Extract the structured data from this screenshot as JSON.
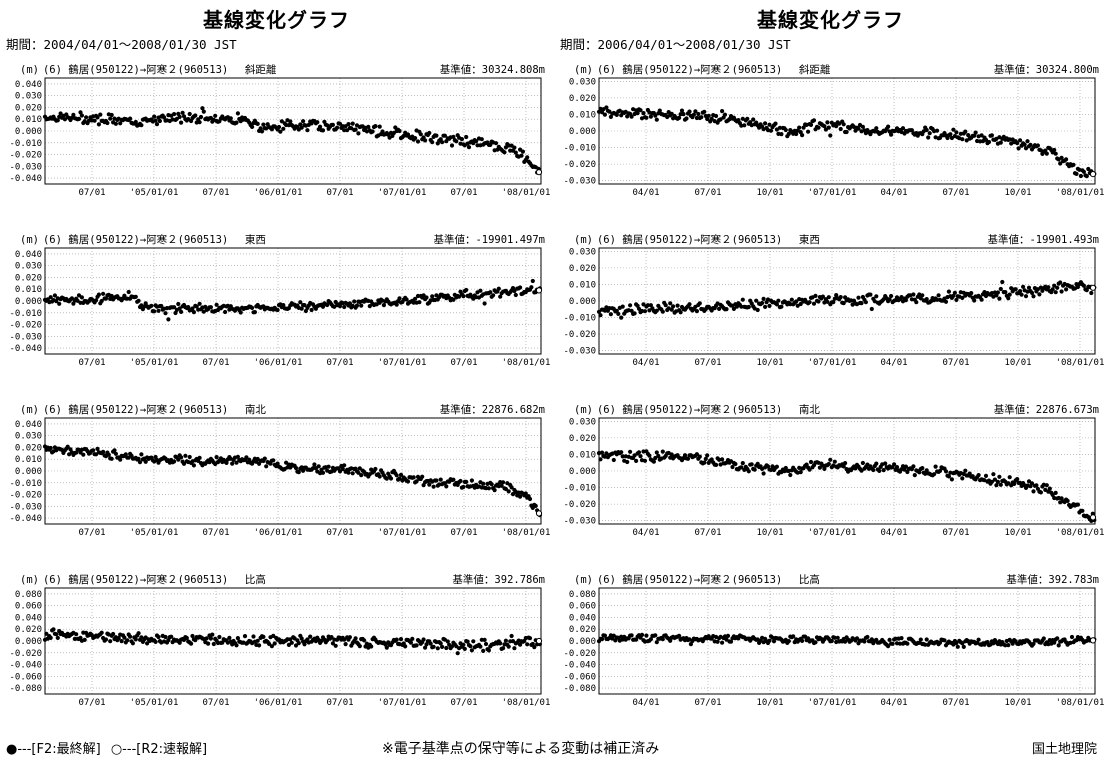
{
  "page": {
    "legend_final": "●---[F2:最終解]",
    "legend_quick": "○---[R2:速報解]",
    "note": "※電子基準点の保守等による変動は補正済み",
    "organization": "国土地理院"
  },
  "panels": [
    {
      "title": "基線変化グラフ",
      "period": "期間：2004/04/01～2008/01/30 JST",
      "charts": [
        {
          "unit": "(m)",
          "pair": "(6) 鶴居(950122)→阿寒２(960513)",
          "component": "斜距離",
          "reference": "基準値：30324.808m"
        },
        {
          "unit": "(m)",
          "pair": "(6) 鶴居(950122)→阿寒２(960513)",
          "component": "東西",
          "reference": "基準値：-19901.497m"
        },
        {
          "unit": "(m)",
          "pair": "(6) 鶴居(950122)→阿寒２(960513)",
          "component": "南北",
          "reference": "基準値：22876.682m"
        },
        {
          "unit": "(m)",
          "pair": "(6) 鶴居(950122)→阿寒２(960513)",
          "component": "比高",
          "reference": "基準値：392.786m"
        }
      ]
    },
    {
      "title": "基線変化グラフ",
      "period": "期間：2006/04/01～2008/01/30 JST",
      "charts": [
        {
          "unit": "(m)",
          "pair": "(6) 鶴居(950122)→阿寒２(960513)",
          "component": "斜距離",
          "reference": "基準値：30324.800m"
        },
        {
          "unit": "(m)",
          "pair": "(6) 鶴居(950122)→阿寒２(960513)",
          "component": "東西",
          "reference": "基準値：-19901.493m"
        },
        {
          "unit": "(m)",
          "pair": "(6) 鶴居(950122)→阿寒２(960513)",
          "component": "南北",
          "reference": "基準値：22876.673m"
        },
        {
          "unit": "(m)",
          "pair": "(6) 鶴居(950122)→阿寒２(960513)",
          "component": "比高",
          "reference": "基準値：392.783m"
        }
      ]
    }
  ],
  "chart_data": [
    {
      "type": "scatter",
      "component": "斜距離",
      "x_range": [
        "2004-04-01",
        "2008-01-30"
      ],
      "xticks": [
        "07/01",
        "'05/01/01",
        "07/01",
        "'06/01/01",
        "07/01",
        "'07/01/01",
        "07/01",
        "'08/01/01"
      ],
      "ylim": [
        -0.045,
        0.045
      ],
      "yticks": [
        "0.040",
        "0.030",
        "0.020",
        "0.010",
        "0.000",
        "-0.010",
        "-0.020",
        "-0.030",
        "-0.040"
      ],
      "grid": true,
      "trend": [
        [
          "2004-04-01",
          0.012
        ],
        [
          "2004-10-01",
          0.01
        ],
        [
          "2004-12-15",
          0.006
        ],
        [
          "2005-01-05",
          0.01
        ],
        [
          "2005-06-01",
          0.012
        ],
        [
          "2005-10-01",
          0.01
        ],
        [
          "2005-12-15",
          0.004
        ],
        [
          "2006-01-10",
          0.002
        ],
        [
          "2006-02-15",
          0.006
        ],
        [
          "2006-07-01",
          0.004
        ],
        [
          "2006-12-15",
          -0.002
        ],
        [
          "2007-04-01",
          -0.006
        ],
        [
          "2007-07-01",
          -0.009
        ],
        [
          "2007-10-01",
          -0.012
        ],
        [
          "2007-12-01",
          -0.018
        ],
        [
          "2008-01-10",
          -0.032
        ],
        [
          "2008-01-30",
          -0.035
        ]
      ],
      "scatter": 0.006
    },
    {
      "type": "scatter",
      "component": "東西",
      "x_range": [
        "2004-04-01",
        "2008-01-30"
      ],
      "xticks": [
        "07/01",
        "'05/01/01",
        "07/01",
        "'06/01/01",
        "07/01",
        "'07/01/01",
        "07/01",
        "'08/01/01"
      ],
      "ylim": [
        -0.045,
        0.045
      ],
      "yticks": [
        "0.040",
        "0.030",
        "0.020",
        "0.010",
        "0.000",
        "-0.010",
        "-0.020",
        "-0.030",
        "-0.040"
      ],
      "grid": true,
      "trend": [
        [
          "2004-04-01",
          0.001
        ],
        [
          "2004-09-01",
          0.002
        ],
        [
          "2004-12-01",
          0.004
        ],
        [
          "2005-01-05",
          -0.005
        ],
        [
          "2005-03-01",
          -0.007
        ],
        [
          "2006-01-01",
          -0.006
        ],
        [
          "2006-07-01",
          -0.003
        ],
        [
          "2007-01-01",
          0.0
        ],
        [
          "2007-07-01",
          0.004
        ],
        [
          "2008-01-10",
          0.01
        ],
        [
          "2008-01-30",
          0.009
        ]
      ],
      "scatter": 0.005
    },
    {
      "type": "scatter",
      "component": "南北",
      "x_range": [
        "2004-04-01",
        "2008-01-30"
      ],
      "xticks": [
        "07/01",
        "'05/01/01",
        "07/01",
        "'06/01/01",
        "07/01",
        "'07/01/01",
        "07/01",
        "'08/01/01"
      ],
      "ylim": [
        -0.045,
        0.045
      ],
      "yticks": [
        "0.040",
        "0.030",
        "0.020",
        "0.010",
        "0.000",
        "-0.010",
        "-0.020",
        "-0.030",
        "-0.040"
      ],
      "grid": true,
      "trend": [
        [
          "2004-04-01",
          0.018
        ],
        [
          "2004-08-01",
          0.017
        ],
        [
          "2004-12-01",
          0.011
        ],
        [
          "2005-06-01",
          0.009
        ],
        [
          "2006-01-01",
          0.008
        ],
        [
          "2006-03-01",
          0.002
        ],
        [
          "2006-07-01",
          0.002
        ],
        [
          "2007-01-01",
          -0.004
        ],
        [
          "2007-04-01",
          -0.01
        ],
        [
          "2007-07-01",
          -0.01
        ],
        [
          "2007-11-01",
          -0.014
        ],
        [
          "2008-01-01",
          -0.026
        ],
        [
          "2008-01-30",
          -0.036
        ]
      ],
      "scatter": 0.005
    },
    {
      "type": "scatter",
      "component": "比高",
      "x_range": [
        "2004-04-01",
        "2008-01-30"
      ],
      "xticks": [
        "07/01",
        "'05/01/01",
        "07/01",
        "'06/01/01",
        "07/01",
        "'07/01/01",
        "07/01",
        "'08/01/01"
      ],
      "ylim": [
        -0.09,
        0.09
      ],
      "yticks": [
        "0.080",
        "0.060",
        "0.040",
        "0.020",
        "0.000",
        "-0.020",
        "-0.040",
        "-0.060",
        "-0.080"
      ],
      "grid": true,
      "trend": [
        [
          "2004-04-01",
          0.01
        ],
        [
          "2005-01-01",
          0.004
        ],
        [
          "2006-01-01",
          0.0
        ],
        [
          "2007-01-01",
          -0.003
        ],
        [
          "2007-10-01",
          -0.008
        ],
        [
          "2008-01-30",
          0.0
        ]
      ],
      "scatter": 0.012
    },
    {
      "type": "scatter",
      "component": "斜距離",
      "x_range": [
        "2006-04-01",
        "2008-01-30"
      ],
      "xticks": [
        "04/01",
        "07/01",
        "10/01",
        "'07/01/01",
        "04/01",
        "07/01",
        "10/01",
        "'08/01/01"
      ],
      "ylim": [
        -0.032,
        0.032
      ],
      "yticks": [
        "0.030",
        "0.020",
        "0.010",
        "0.000",
        "-0.010",
        "-0.020",
        "-0.030"
      ],
      "grid": true,
      "trend": [
        [
          "2006-04-01",
          0.012
        ],
        [
          "2006-07-01",
          0.01
        ],
        [
          "2006-10-01",
          0.007
        ],
        [
          "2006-12-20",
          -0.001
        ],
        [
          "2007-01-15",
          0.004
        ],
        [
          "2007-04-01",
          0.001
        ],
        [
          "2007-07-01",
          -0.001
        ],
        [
          "2007-10-01",
          -0.006
        ],
        [
          "2007-12-01",
          -0.012
        ],
        [
          "2008-01-05",
          -0.024
        ],
        [
          "2008-01-30",
          -0.026
        ]
      ],
      "scatter": 0.004
    },
    {
      "type": "scatter",
      "component": "東西",
      "x_range": [
        "2006-04-01",
        "2008-01-30"
      ],
      "xticks": [
        "04/01",
        "07/01",
        "10/01",
        "'07/01/01",
        "04/01",
        "07/01",
        "10/01",
        "'08/01/01"
      ],
      "ylim": [
        -0.032,
        0.032
      ],
      "yticks": [
        "0.030",
        "0.020",
        "0.010",
        "0.000",
        "-0.010",
        "-0.020",
        "-0.030"
      ],
      "grid": true,
      "trend": [
        [
          "2006-04-01",
          -0.006
        ],
        [
          "2006-10-01",
          -0.003
        ],
        [
          "2007-01-01",
          0.0
        ],
        [
          "2007-07-01",
          0.002
        ],
        [
          "2007-10-01",
          0.004
        ],
        [
          "2008-01-01",
          0.009
        ],
        [
          "2008-01-30",
          0.008
        ]
      ],
      "scatter": 0.004
    },
    {
      "type": "scatter",
      "component": "南北",
      "x_range": [
        "2006-04-01",
        "2008-01-30"
      ],
      "xticks": [
        "04/01",
        "07/01",
        "10/01",
        "'07/01/01",
        "04/01",
        "07/01",
        "10/01",
        "'08/01/01"
      ],
      "ylim": [
        -0.032,
        0.032
      ],
      "yticks": [
        "0.030",
        "0.020",
        "0.010",
        "0.000",
        "-0.010",
        "-0.020",
        "-0.030"
      ],
      "grid": true,
      "trend": [
        [
          "2006-04-01",
          0.009
        ],
        [
          "2006-08-01",
          0.009
        ],
        [
          "2006-10-01",
          0.004
        ],
        [
          "2006-12-20",
          -0.001
        ],
        [
          "2007-01-15",
          0.004
        ],
        [
          "2007-04-01",
          0.002
        ],
        [
          "2007-07-01",
          0.0
        ],
        [
          "2007-10-01",
          -0.006
        ],
        [
          "2007-12-01",
          -0.012
        ],
        [
          "2008-01-10",
          -0.024
        ],
        [
          "2008-01-30",
          -0.028
        ]
      ],
      "scatter": 0.004
    },
    {
      "type": "scatter",
      "component": "比高",
      "x_range": [
        "2006-04-01",
        "2008-01-30"
      ],
      "xticks": [
        "04/01",
        "07/01",
        "10/01",
        "'07/01/01",
        "04/01",
        "07/01",
        "10/01",
        "'08/01/01"
      ],
      "ylim": [
        -0.09,
        0.09
      ],
      "yticks": [
        "0.080",
        "0.060",
        "0.040",
        "0.020",
        "0.000",
        "-0.020",
        "-0.040",
        "-0.060",
        "-0.080"
      ],
      "grid": true,
      "trend": [
        [
          "2006-04-01",
          0.006
        ],
        [
          "2007-01-01",
          0.002
        ],
        [
          "2007-10-01",
          -0.003
        ],
        [
          "2008-01-30",
          0.001
        ]
      ],
      "scatter": 0.008
    }
  ]
}
